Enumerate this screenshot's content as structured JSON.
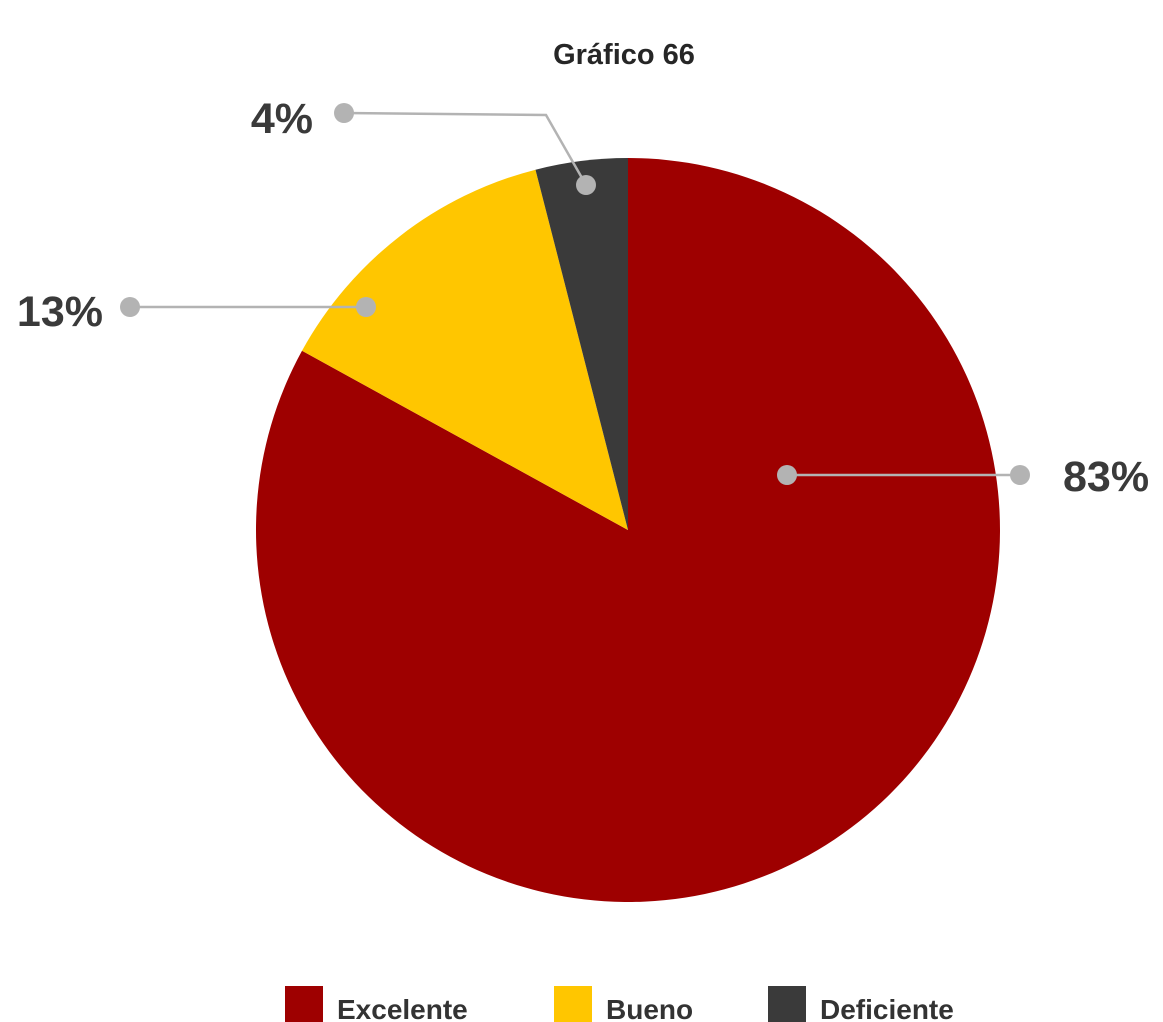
{
  "chart_data": {
    "type": "pie",
    "title": "Gráfico 66",
    "categories": [
      "Excelente",
      "Bueno",
      "Deficiente"
    ],
    "values": [
      83,
      13,
      4
    ],
    "value_labels": [
      "83%",
      "13%",
      "4%"
    ],
    "colors": [
      "#9e0000",
      "#ffc600",
      "#3a3a3a"
    ],
    "leader_color": "#b3b3b3",
    "legend": {
      "placement": "bottom",
      "entries": [
        "Excelente",
        "Bueno",
        "Deficiente"
      ]
    }
  }
}
